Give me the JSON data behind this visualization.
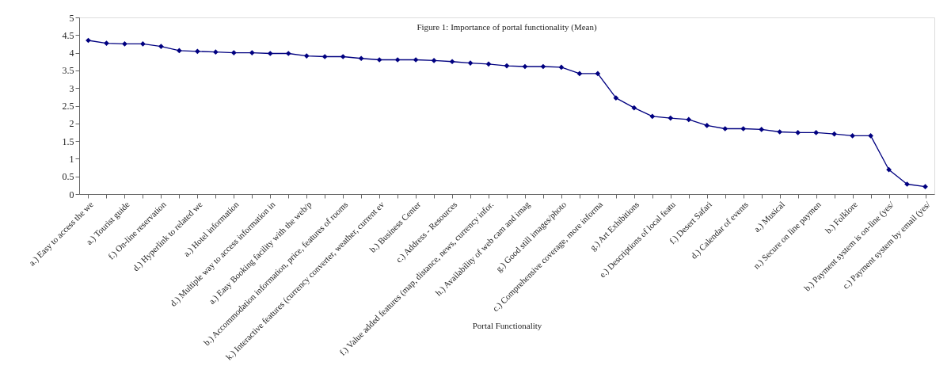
{
  "chart_data": {
    "type": "line",
    "title": "Figure 1: Importance of  portal functionality (Mean)",
    "xlabel": "Portal Functionality",
    "categories": [
      "a.) Easy to access the we",
      null,
      "a.) Tourist guide",
      null,
      "f.) On-line reservation",
      null,
      "d.) Hyperlink to related we",
      null,
      "a.) Hotel information",
      null,
      "d.) Multiple way to access information in",
      null,
      "a.) Easy Booking facility with the web/p",
      null,
      "b.) Accommodation information, price, features of rooms",
      null,
      "k.) Interactive features (currency converter, weather, current ev",
      null,
      "b.) Business Center",
      null,
      "c.) Address - Resources",
      null,
      "f.) Value added features (map, distance, news, currency infor.",
      null,
      "h.) Availability of web cam and imag",
      null,
      "g.) Good still images/photo",
      null,
      "c.) Comprehensive coverage, more informa",
      null,
      "g.) Art Exhibitions",
      null,
      "e.) Descriptions of local featu",
      null,
      "f.) Desert Safari",
      null,
      "d.) Calendar of events",
      null,
      "a.) Musical",
      null,
      "n.) Secure on line paymen",
      null,
      "b.) Folklore",
      null,
      "b.) Payment system is on-line (yes/",
      null,
      "c.) Payment system by email (yes/"
    ],
    "series": [
      {
        "color": "#000080",
        "values": [
          4.35,
          4.27,
          4.25,
          4.25,
          4.18,
          4.06,
          4.04,
          4.02,
          4.0,
          4.0,
          3.98,
          3.98,
          3.91,
          3.89,
          3.89,
          3.84,
          3.8,
          3.8,
          3.8,
          3.78,
          3.75,
          3.71,
          3.68,
          3.63,
          3.61,
          3.61,
          3.59,
          3.41,
          3.41,
          2.72,
          2.44,
          2.2,
          2.15,
          2.11,
          1.94,
          1.85,
          1.85,
          1.83,
          1.76,
          1.74,
          1.74,
          1.7,
          1.65,
          1.65,
          0.69,
          0.28,
          0.21
        ]
      }
    ],
    "ylim": [
      0,
      5
    ],
    "yticks": [
      0,
      0.5,
      1,
      1.5,
      2,
      2.5,
      3,
      3.5,
      4,
      4.5,
      5
    ],
    "marker": "diamond",
    "line_style": "solid",
    "grid": false
  }
}
